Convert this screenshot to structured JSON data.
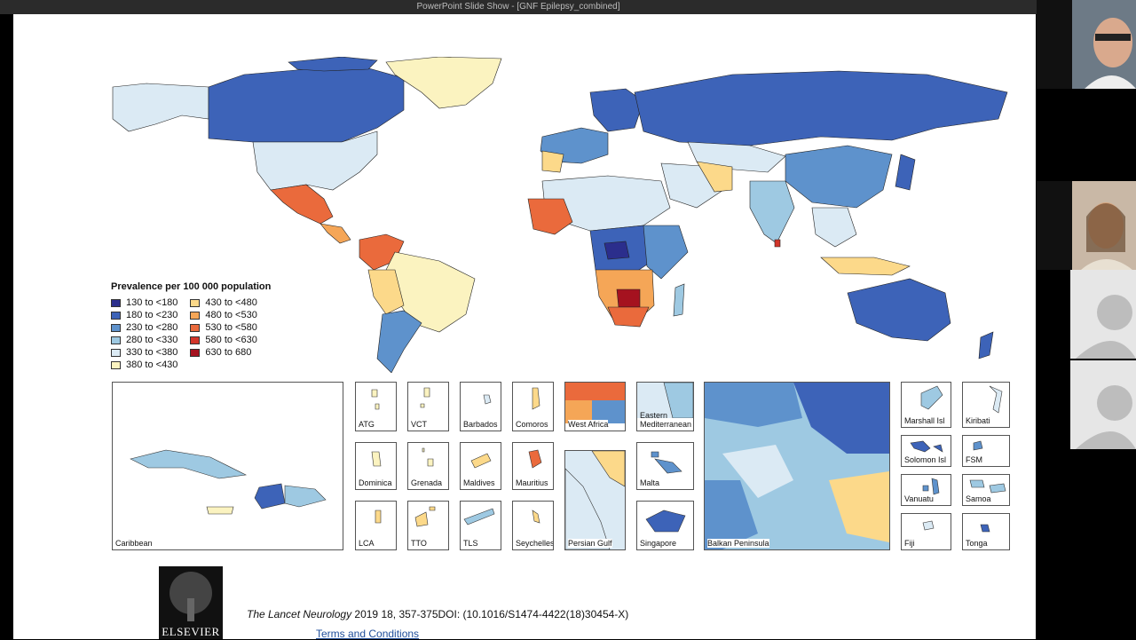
{
  "window": {
    "title": "PowerPoint Slide Show - [GNF Epilepsy_combined]"
  },
  "legend": {
    "title": "Prevalence per 100 000 population",
    "items": [
      {
        "label": "130 to <180",
        "color": "#2b2e8c"
      },
      {
        "label": "180 to <230",
        "color": "#3d63b8"
      },
      {
        "label": "230 to <280",
        "color": "#5e92cc"
      },
      {
        "label": "280 to <330",
        "color": "#9ec9e2"
      },
      {
        "label": "330 to <380",
        "color": "#dbeaf4"
      },
      {
        "label": "380 to <430",
        "color": "#fbf3c0"
      },
      {
        "label": "430 to <480",
        "color": "#fcd98a"
      },
      {
        "label": "480 to <530",
        "color": "#f5a657"
      },
      {
        "label": "530 to <580",
        "color": "#ea6a3c"
      },
      {
        "label": "580 to <630",
        "color": "#d2352a"
      },
      {
        "label": "630 to 680",
        "color": "#a5121f"
      }
    ]
  },
  "insets": {
    "caribbean": "Caribbean",
    "atg": "ATG",
    "vct": "VCT",
    "barbados": "Barbados",
    "comoros": "Comoros",
    "west_africa": "West Africa",
    "eastern_med": "Eastern Mediterranean",
    "balkan": "Balkan Peninsula",
    "marshall": "Marshall Isl",
    "kiribati": "Kiribati",
    "dominica": "Dominica",
    "grenada": "Grenada",
    "maldives": "Maldives",
    "mauritius": "Mauritius",
    "malta": "Malta",
    "solomon": "Solomon Isl",
    "fsm": "FSM",
    "lca": "LCA",
    "tto": "TTO",
    "tls": "TLS",
    "seychelles": "Seychelles",
    "persian_gulf": "Persian Gulf",
    "singapore": "Singapore",
    "vanuatu": "Vanuatu",
    "samoa": "Samoa",
    "fiji": "Fiji",
    "tonga": "Tonga"
  },
  "footer": {
    "logo": "ELSEVIER",
    "journal": "The Lancet Neurology",
    "citation": " 2019 18, 357-375DOI: (10.1016/S1474-4422(18)30454-X)",
    "terms": "Terms and Conditions"
  }
}
